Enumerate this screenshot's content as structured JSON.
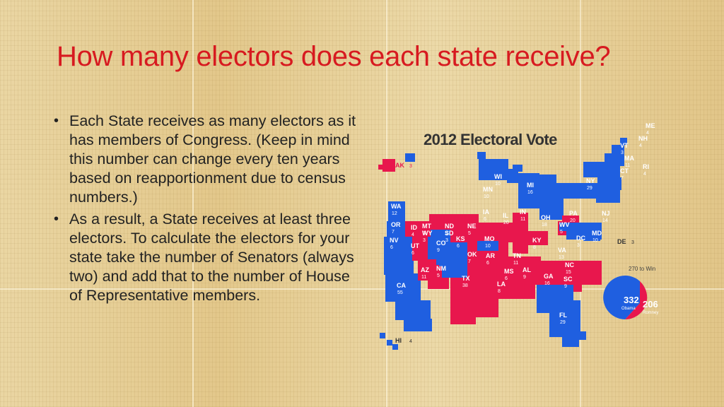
{
  "slide": {
    "title": "How many electors does each state receive?",
    "bullets": [
      "Each State receives as many electors as it has members of Congress. (Keep in mind this number can change every ten years based on reapportionment due to census numbers.)",
      "As a result, a State receives at least three electors. To calculate the electors for your state take the number of Senators (always two) and add that to the number of House of Representative members."
    ]
  },
  "map": {
    "title": "2012 Electoral Vote",
    "colors": {
      "blue": "#1f5fe0",
      "red": "#e8174d",
      "label": "#ffffff",
      "dark": "#333333"
    },
    "states": [
      {
        "abbr": "ME",
        "votes": "4",
        "party": "blue"
      },
      {
        "abbr": "NH",
        "votes": "4",
        "party": "blue"
      },
      {
        "abbr": "VT",
        "votes": "3",
        "party": "blue"
      },
      {
        "abbr": "MA",
        "votes": "11",
        "party": "blue"
      },
      {
        "abbr": "CT",
        "votes": "7",
        "party": "blue"
      },
      {
        "abbr": "RI",
        "votes": "4",
        "party": "blue"
      },
      {
        "abbr": "NY",
        "votes": "29",
        "party": "blue"
      },
      {
        "abbr": "NJ",
        "votes": "14",
        "party": "blue"
      },
      {
        "abbr": "PA",
        "votes": "20",
        "party": "blue"
      },
      {
        "abbr": "DE",
        "votes": "3",
        "party": "blue"
      },
      {
        "abbr": "MD",
        "votes": "10",
        "party": "blue"
      },
      {
        "abbr": "DC",
        "votes": "3",
        "party": "blue"
      },
      {
        "abbr": "VA",
        "votes": "13",
        "party": "blue"
      },
      {
        "abbr": "OH",
        "votes": "18",
        "party": "blue"
      },
      {
        "abbr": "MI",
        "votes": "16",
        "party": "blue"
      },
      {
        "abbr": "WI",
        "votes": "10",
        "party": "blue"
      },
      {
        "abbr": "MN",
        "votes": "10",
        "party": "blue"
      },
      {
        "abbr": "IA",
        "votes": "6",
        "party": "blue"
      },
      {
        "abbr": "IL",
        "votes": "20",
        "party": "blue"
      },
      {
        "abbr": "IN",
        "votes": "11",
        "party": "red"
      },
      {
        "abbr": "KY",
        "votes": "8",
        "party": "red"
      },
      {
        "abbr": "WV",
        "votes": "5",
        "party": "red"
      },
      {
        "abbr": "TN",
        "votes": "11",
        "party": "red"
      },
      {
        "abbr": "NC",
        "votes": "15",
        "party": "red"
      },
      {
        "abbr": "SC",
        "votes": "9",
        "party": "red"
      },
      {
        "abbr": "GA",
        "votes": "16",
        "party": "red"
      },
      {
        "abbr": "AL",
        "votes": "9",
        "party": "red"
      },
      {
        "abbr": "MS",
        "votes": "6",
        "party": "red"
      },
      {
        "abbr": "LA",
        "votes": "8",
        "party": "red"
      },
      {
        "abbr": "AR",
        "votes": "6",
        "party": "red"
      },
      {
        "abbr": "MO",
        "votes": "10",
        "party": "red"
      },
      {
        "abbr": "FL",
        "votes": "29",
        "party": "blue"
      },
      {
        "abbr": "TX",
        "votes": "38",
        "party": "red"
      },
      {
        "abbr": "OK",
        "votes": "7",
        "party": "red"
      },
      {
        "abbr": "KS",
        "votes": "6",
        "party": "red"
      },
      {
        "abbr": "NE",
        "votes": "5",
        "party": "red"
      },
      {
        "abbr": "SD",
        "votes": "3",
        "party": "red"
      },
      {
        "abbr": "ND",
        "votes": "3",
        "party": "red"
      },
      {
        "abbr": "MT",
        "votes": "3",
        "party": "red"
      },
      {
        "abbr": "WY",
        "votes": "3",
        "party": "red"
      },
      {
        "abbr": "CO",
        "votes": "9",
        "party": "blue"
      },
      {
        "abbr": "NM",
        "votes": "5",
        "party": "blue"
      },
      {
        "abbr": "AZ",
        "votes": "11",
        "party": "red"
      },
      {
        "abbr": "UT",
        "votes": "6",
        "party": "red"
      },
      {
        "abbr": "NV",
        "votes": "6",
        "party": "blue"
      },
      {
        "abbr": "ID",
        "votes": "4",
        "party": "red"
      },
      {
        "abbr": "OR",
        "votes": "7",
        "party": "blue"
      },
      {
        "abbr": "WA",
        "votes": "12",
        "party": "blue"
      },
      {
        "abbr": "CA",
        "votes": "55",
        "party": "blue"
      },
      {
        "abbr": "AK",
        "votes": "3",
        "party": "red"
      },
      {
        "abbr": "HI",
        "votes": "4",
        "party": "blue"
      }
    ],
    "result": {
      "threshold_label": "270 to Win",
      "obama_votes": "332",
      "obama_label": "Obama",
      "romney_votes": "206",
      "romney_label": "Romney",
      "obama_share": 0.617
    }
  }
}
